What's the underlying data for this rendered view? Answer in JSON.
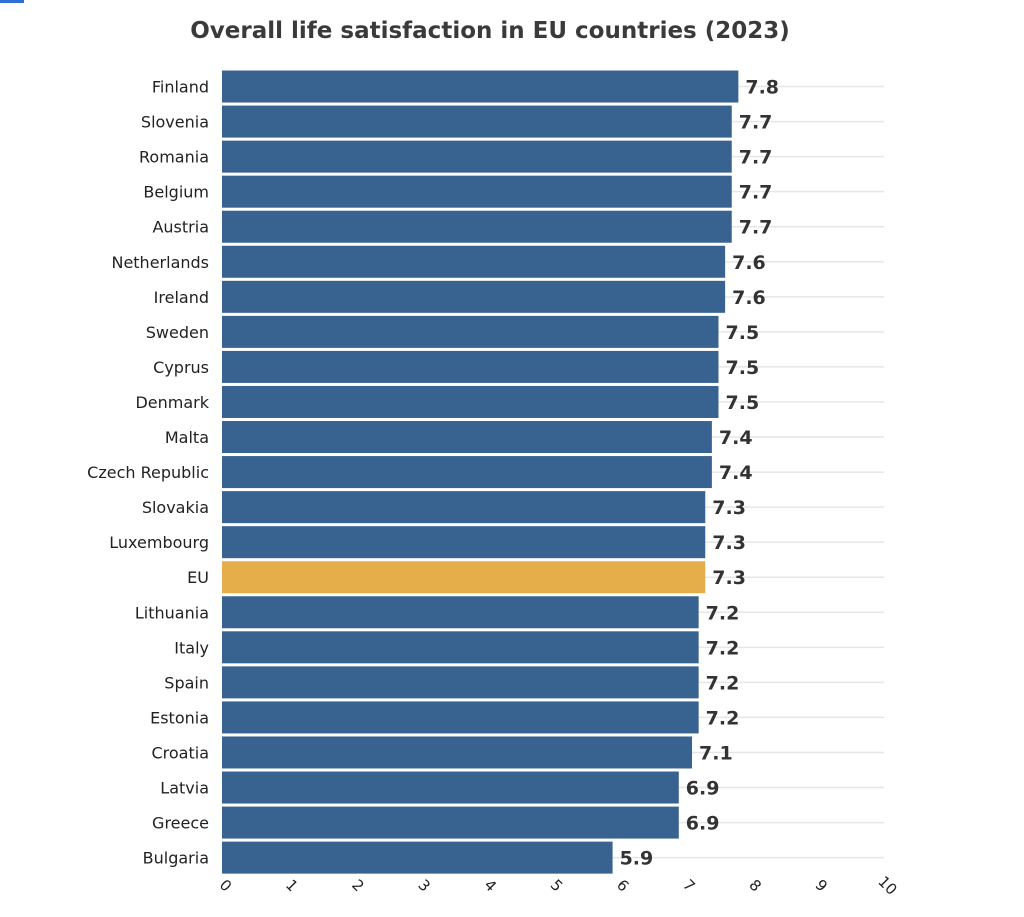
{
  "chart_data": {
    "type": "bar",
    "orientation": "horizontal",
    "title": "Overall life satisfaction in EU countries (2023)",
    "xlabel": "",
    "ylabel": "",
    "xlim": [
      0,
      10
    ],
    "ticks": [
      0,
      1,
      2,
      3,
      4,
      5,
      6,
      7,
      8,
      9,
      10
    ],
    "grid": true,
    "legend": "none",
    "categories": [
      "Finland",
      "Slovenia",
      "Romania",
      "Belgium",
      "Austria",
      "Netherlands",
      "Ireland",
      "Sweden",
      "Cyprus",
      "Denmark",
      "Malta",
      "Czech Republic",
      "Slovakia",
      "Luxembourg",
      "EU",
      "Lithuania",
      "Italy",
      "Spain",
      "Estonia",
      "Croatia",
      "Latvia",
      "Greece",
      "Bulgaria"
    ],
    "values": [
      7.8,
      7.7,
      7.7,
      7.7,
      7.7,
      7.6,
      7.6,
      7.5,
      7.5,
      7.5,
      7.4,
      7.4,
      7.3,
      7.3,
      7.3,
      7.2,
      7.2,
      7.2,
      7.2,
      7.1,
      6.9,
      6.9,
      5.9
    ],
    "value_labels": [
      "7.8",
      "7.7",
      "7.7",
      "7.7",
      "7.7",
      "7.6",
      "7.6",
      "7.5",
      "7.5",
      "7.5",
      "7.4",
      "7.4",
      "7.3",
      "7.3",
      "7.3",
      "7.2",
      "7.2",
      "7.2",
      "7.2",
      "7.1",
      "6.9",
      "6.9",
      "5.9"
    ],
    "highlight": "EU",
    "colors": {
      "bar": "#38628f",
      "highlight": "#e6ae4a",
      "grid": "#e6e6e6"
    }
  }
}
